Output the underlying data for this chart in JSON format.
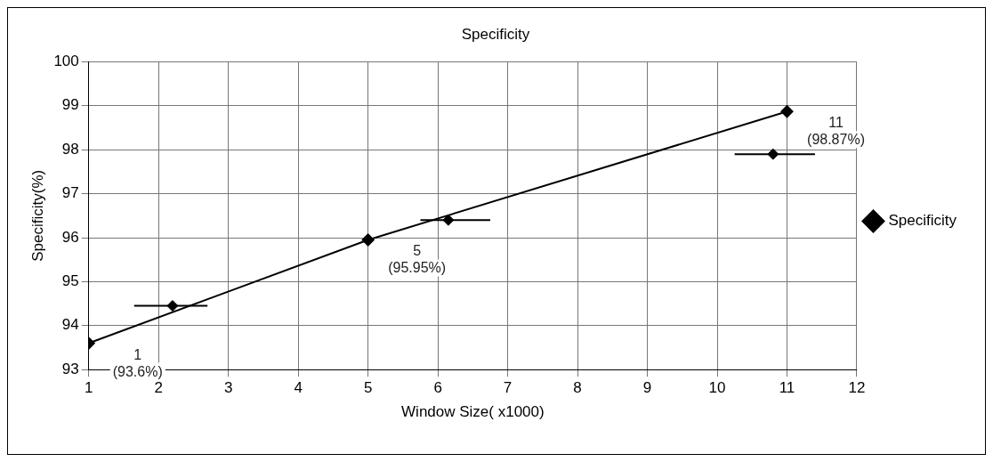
{
  "chart_data": {
    "type": "line",
    "title": "Specificity",
    "xlabel": "Window Size( x1000)",
    "ylabel": "Specificity(%)",
    "xlim": [
      1,
      12
    ],
    "xticks": [
      1,
      2,
      3,
      4,
      5,
      6,
      7,
      8,
      9,
      10,
      11,
      12
    ],
    "ylim": [
      93,
      100
    ],
    "yticks": [
      93,
      94,
      95,
      96,
      97,
      98,
      99,
      100
    ],
    "grid": true,
    "legend": "right",
    "marker": "diamond",
    "line_style": "solid",
    "series": [
      {
        "name": "Specificity",
        "color": "#000000",
        "x": [
          1,
          5,
          11
        ],
        "values": [
          93.6,
          95.95,
          98.87
        ]
      },
      {
        "type": "scatter",
        "color": "#000000",
        "x": [
          2.2,
          6.15,
          10.8
        ],
        "values": [
          94.45,
          96.4,
          97.9
        ],
        "xerrors": [
          [
            1.65,
            2.7
          ],
          [
            5.75,
            6.75
          ],
          [
            10.25,
            11.4
          ]
        ]
      }
    ],
    "annotations": [
      {
        "text": "1\n(93.6%)",
        "x": 1,
        "y": 93.6
      },
      {
        "text": "5\n(95.95%)",
        "x": 5,
        "y": 95.95
      },
      {
        "text": "11\n(98.87%)",
        "x": 11,
        "y": 98.87
      }
    ]
  }
}
